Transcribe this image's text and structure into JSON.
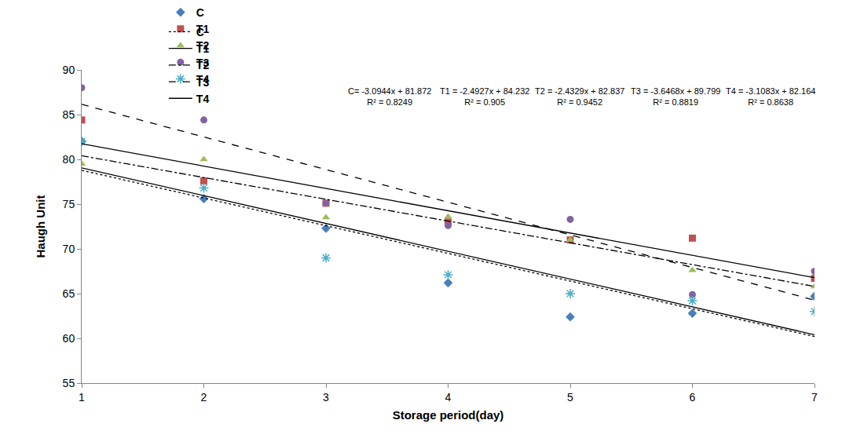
{
  "chart_data": {
    "type": "scatter",
    "x_label": "Storage period(day)",
    "y_label": "Haugh Unit",
    "x": [
      1,
      2,
      3,
      4,
      5,
      6,
      7
    ],
    "xlim": [
      1,
      7
    ],
    "xticks": [
      1,
      2,
      3,
      4,
      5,
      6,
      7
    ],
    "ylim": [
      55,
      90
    ],
    "yticks": [
      55,
      60,
      65,
      70,
      75,
      80,
      85,
      90
    ],
    "grid": false,
    "legend": "top",
    "series": [
      {
        "name": "C",
        "color": "#4a7ebb",
        "marker": "diamond",
        "line_style": "dot",
        "values": [
          82.0,
          75.6,
          72.3,
          66.2,
          62.4,
          62.8,
          64.7
        ],
        "slope": -3.0944,
        "intercept": 81.872,
        "equation_text": "C= -3.0944x + 81.872",
        "r2_text": "R² = 0.8249"
      },
      {
        "name": "T1",
        "color": "#c0504d",
        "marker": "square",
        "line_style": "solid",
        "values": [
          84.4,
          77.6,
          75.1,
          73.0,
          71.0,
          71.2,
          66.7
        ],
        "slope": -2.4927,
        "intercept": 84.232,
        "equation_text": "T1 = -2.4927x + 84.232",
        "r2_text": "R² = 0.905"
      },
      {
        "name": "T2",
        "color": "#9bbb59",
        "marker": "triangle-up",
        "line_style": "dashdot",
        "values": [
          79.5,
          80.0,
          73.5,
          73.6,
          71.0,
          67.6,
          65.8
        ],
        "slope": -2.4329,
        "intercept": 82.837,
        "equation_text": "T2 = -2.4329x + 82.837",
        "r2_text": "R² = 0.9452"
      },
      {
        "name": "T3",
        "color": "#8064a2",
        "marker": "circle",
        "line_style": "dash",
        "values": [
          88.0,
          84.4,
          75.1,
          72.6,
          73.3,
          64.9,
          67.5
        ],
        "slope": -3.6468,
        "intercept": 89.799,
        "equation_text": "T3 = -3.6468x + 89.799",
        "r2_text": "R² = 0.8819"
      },
      {
        "name": "T4",
        "color": "#4bacc6",
        "marker": "asterisk",
        "line_style": "solid",
        "values": [
          82.0,
          76.8,
          69.0,
          67.1,
          65.0,
          64.2,
          63.0
        ],
        "slope": -3.1083,
        "intercept": 82.164,
        "equation_text": "T4 = -3.1083x + 82.164",
        "r2_text": "R² = 0.8638"
      }
    ]
  }
}
